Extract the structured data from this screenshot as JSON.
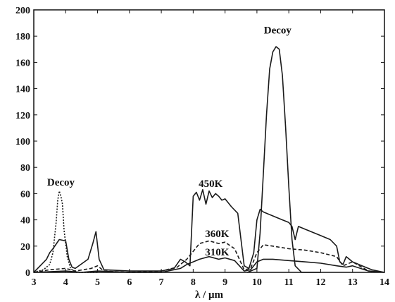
{
  "chart_data": {
    "type": "line",
    "title": "",
    "xlabel": "λ / μm",
    "ylabel": "",
    "xlim": [
      3,
      14
    ],
    "ylim": [
      0,
      200
    ],
    "xticks": [
      3,
      4,
      5,
      6,
      7,
      8,
      9,
      10,
      11,
      12,
      13,
      14
    ],
    "yticks": [
      0,
      20,
      40,
      60,
      80,
      100,
      120,
      140,
      160,
      180,
      200
    ],
    "grid": false,
    "legend": "none",
    "series": [
      {
        "name": "450K",
        "style": "solid",
        "x": [
          3.0,
          3.2,
          3.4,
          3.5,
          3.6,
          3.8,
          4.0,
          4.1,
          4.2,
          4.3,
          4.7,
          4.85,
          4.95,
          5.05,
          5.2,
          6.0,
          7.0,
          7.4,
          7.6,
          7.75,
          7.9,
          8.0,
          8.1,
          8.2,
          8.3,
          8.4,
          8.5,
          8.6,
          8.7,
          8.8,
          8.9,
          9.0,
          9.2,
          9.4,
          9.6,
          9.75,
          9.9,
          10.0,
          10.1,
          10.2,
          10.5,
          10.8,
          11.0,
          11.1,
          11.2,
          11.3,
          11.5,
          12.0,
          12.3,
          12.5,
          12.6,
          12.7,
          12.8,
          12.9,
          13.0,
          13.3,
          13.6,
          14.0
        ],
        "y": [
          0,
          5,
          10,
          15,
          18,
          25,
          24,
          10,
          4,
          3,
          10,
          22,
          31,
          10,
          2,
          1,
          1,
          3,
          10,
          8,
          5,
          58,
          61,
          55,
          63,
          52,
          62,
          57,
          60,
          58,
          55,
          56,
          50,
          45,
          5,
          3,
          15,
          40,
          48,
          46,
          43,
          40,
          38,
          35,
          25,
          35,
          33,
          28,
          25,
          20,
          8,
          6,
          12,
          10,
          8,
          5,
          2,
          0
        ]
      },
      {
        "name": "360K",
        "style": "dashed",
        "x": [
          3.0,
          3.5,
          4.0,
          4.3,
          4.8,
          5.0,
          5.2,
          6.0,
          7.0,
          7.5,
          7.8,
          8.0,
          8.2,
          8.5,
          8.8,
          9.0,
          9.3,
          9.6,
          9.8,
          10.0,
          10.2,
          10.5,
          11.0,
          11.5,
          12.0,
          12.5,
          12.7,
          13.0,
          13.5,
          14.0
        ],
        "y": [
          0,
          2,
          3,
          1,
          3,
          5,
          1,
          0,
          1,
          4,
          10,
          16,
          22,
          24,
          22,
          23,
          18,
          2,
          3,
          15,
          21,
          20,
          18,
          17,
          15,
          12,
          5,
          8,
          1,
          0
        ]
      },
      {
        "name": "310K",
        "style": "solid",
        "x": [
          3.0,
          4.0,
          4.5,
          5.0,
          6.0,
          7.0,
          7.6,
          7.8,
          8.0,
          8.2,
          8.5,
          8.8,
          9.0,
          9.3,
          9.6,
          9.8,
          10.0,
          10.2,
          10.5,
          11.0,
          11.5,
          12.0,
          12.5,
          12.8,
          13.0,
          13.5,
          14.0
        ],
        "y": [
          0,
          1,
          0,
          1,
          0,
          0,
          3,
          6,
          8,
          10,
          12,
          10,
          11,
          9,
          1,
          2,
          8,
          10,
          10,
          9,
          8,
          7,
          5,
          4,
          5,
          1,
          0
        ]
      },
      {
        "name": "Decoy",
        "style": "dotted",
        "x": [
          3.0,
          3.3,
          3.5,
          3.6,
          3.7,
          3.75,
          3.8,
          3.85,
          3.9,
          3.95,
          4.05,
          4.15,
          4.3,
          5.0
        ],
        "y": [
          0,
          2,
          6,
          15,
          38,
          55,
          62,
          58,
          52,
          32,
          12,
          3,
          0,
          0
        ]
      },
      {
        "name": "Decoy",
        "style": "solid",
        "x": [
          9.7,
          10.0,
          10.1,
          10.2,
          10.3,
          10.4,
          10.5,
          10.6,
          10.7,
          10.8,
          10.9,
          11.0,
          11.1,
          11.2,
          11.4,
          12.0
        ],
        "y": [
          0,
          3,
          30,
          75,
          120,
          155,
          168,
          172,
          170,
          150,
          110,
          65,
          25,
          5,
          0,
          0
        ]
      }
    ],
    "annotations": [
      {
        "text": "Decoy",
        "x": 3.85,
        "y": 66
      },
      {
        "text": "Decoy",
        "x": 10.65,
        "y": 182
      },
      {
        "text": "450K",
        "x": 8.55,
        "y": 65
      },
      {
        "text": "360K",
        "x": 8.75,
        "y": 27
      },
      {
        "text": "310K",
        "x": 8.75,
        "y": 13
      }
    ]
  }
}
